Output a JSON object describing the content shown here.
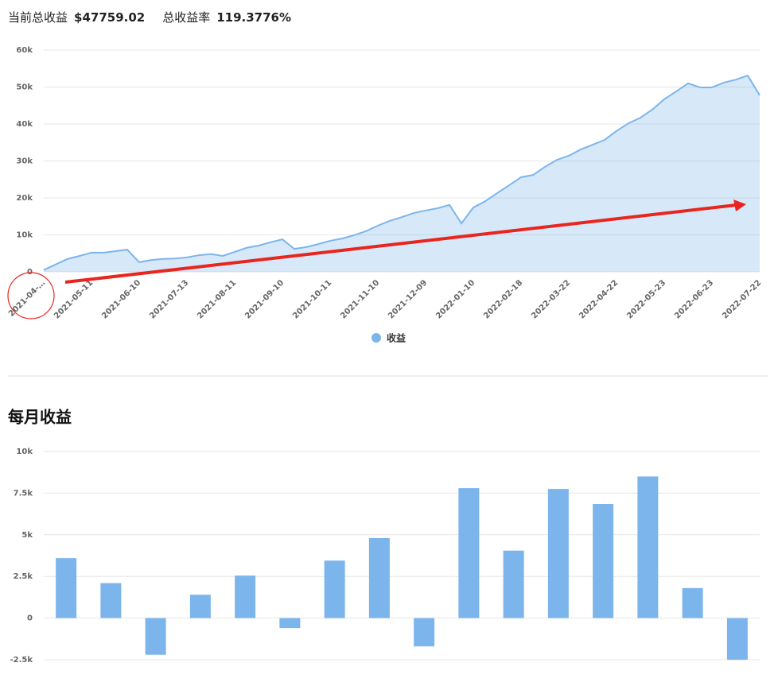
{
  "header": {
    "total_label": "当前总收益",
    "total_value": "$47759.02",
    "rate_label": "总收益率",
    "rate_value": "119.3776%"
  },
  "chart_data": [
    {
      "type": "area",
      "categories": [
        "2021-04-…",
        null,
        null,
        null,
        "2021-05-11",
        null,
        null,
        null,
        "2021-06-10",
        null,
        null,
        null,
        "2021-07-13",
        null,
        null,
        null,
        "2021-08-11",
        null,
        null,
        null,
        "2021-09-10",
        null,
        null,
        null,
        "2021-10-11",
        null,
        null,
        null,
        "2021-11-10",
        null,
        null,
        null,
        "2021-12-09",
        null,
        null,
        null,
        "2022-01-10",
        null,
        null,
        null,
        "2022-02-18",
        null,
        null,
        null,
        "2022-03-22",
        null,
        null,
        null,
        "2022-04-22",
        null,
        null,
        null,
        "2022-05-23",
        null,
        null,
        null,
        "2022-06-23",
        null,
        null,
        null,
        "2022-07-22"
      ],
      "series": [
        {
          "name": "收益",
          "color": "#7cb5ec",
          "values": [
            500,
            2000,
            3500,
            4300,
            5200,
            5200,
            5600,
            6000,
            2600,
            3200,
            3500,
            3600,
            3900,
            4500,
            4800,
            4300,
            5400,
            6500,
            7100,
            8000,
            8800,
            6200,
            6700,
            7500,
            8400,
            9000,
            9900,
            11000,
            12500,
            13800,
            14800,
            15900,
            16600,
            17200,
            18100,
            13100,
            17400,
            19100,
            21300,
            23400,
            25600,
            26200,
            28400,
            30300,
            31400,
            33100,
            34400,
            35700,
            38100,
            40200,
            41700,
            43900,
            46700,
            48800,
            51000,
            49900,
            49900,
            51200,
            52000,
            53100,
            47759
          ]
        }
      ],
      "ylim": [
        0,
        60000
      ],
      "yticks": [
        0,
        {
          "value": 10000,
          "label": "10k"
        },
        {
          "value": 20000,
          "label": "20k"
        },
        {
          "value": 30000,
          "label": "30k"
        },
        {
          "value": 40000,
          "label": "40k"
        },
        {
          "value": 50000,
          "label": "50k"
        },
        {
          "value": 60000,
          "label": "60k"
        }
      ],
      "grid": true,
      "legend": "bottom"
    },
    {
      "type": "bar",
      "title": "每月收益",
      "categories": [
        null,
        null,
        null,
        null,
        null,
        null,
        null,
        null,
        null,
        null,
        null,
        null,
        null,
        null,
        null,
        null
      ],
      "values": [
        3600,
        2100,
        -2200,
        1400,
        2550,
        -600,
        3450,
        4800,
        -1700,
        7800,
        4050,
        7750,
        6850,
        8500,
        1800,
        -2500
      ],
      "color": "#7cb5ec",
      "ylim": [
        -2500,
        10000
      ],
      "yticks": [
        {
          "value": -2500,
          "label": "-2.5k"
        },
        0,
        {
          "value": 2500,
          "label": "2.5k"
        },
        {
          "value": 5000,
          "label": "5k"
        },
        {
          "value": 7500,
          "label": "7.5k"
        },
        {
          "value": 10000,
          "label": "10k"
        }
      ],
      "grid": true
    }
  ]
}
